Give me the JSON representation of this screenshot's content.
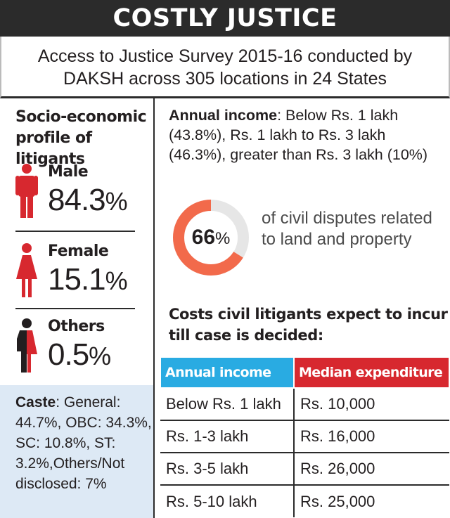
{
  "header": {
    "title": "COSTLY JUSTICE",
    "subtitle_line1": "Access to Justice Survey 2015-16 conducted by",
    "subtitle_line2": "DAKSH across 305 locations in 24 States"
  },
  "profile": {
    "heading": "Socio-economic profile of litigants",
    "genders": [
      {
        "label": "Male",
        "value": "84.3",
        "unit": "%",
        "icon": "male-figure-icon",
        "color": "#d7282f"
      },
      {
        "label": "Female",
        "value": "15.1",
        "unit": "%",
        "icon": "female-figure-icon",
        "color": "#d7282f"
      },
      {
        "label": "Others",
        "value": "0.5",
        "unit": "%",
        "icon": "others-figure-icon",
        "color": "#d7282f"
      }
    ]
  },
  "caste": {
    "label": "Caste",
    "text": ": General: 44.7%, OBC: 34.3%, SC: 10.8%, ST: 3.2%,Others/Not disclosed: 7%"
  },
  "income": {
    "label": "Annual income",
    "text": ": Below Rs. 1 lakh (43.8%), Rs. 1 lakh to Rs. 3 lakh (46.3%), greater than Rs. 3 lakh (10%)"
  },
  "disputes": {
    "value": "66",
    "unit": "%",
    "fraction": 0.66,
    "text": "of civil disputes related to land and property",
    "colors": {
      "filled": "#f26a4b",
      "remainder": "#e6e6e6"
    }
  },
  "costs": {
    "heading": "Costs civil litigants expect to incur till case is decided:",
    "col_income": "Annual income",
    "col_expenditure": "Median expenditure",
    "rows": [
      {
        "income": "Below Rs. 1 lakh",
        "expenditure": "Rs. 10,000"
      },
      {
        "income": "Rs. 1-3 lakh",
        "expenditure": "Rs. 16,000"
      },
      {
        "income": "Rs. 3-5 lakh",
        "expenditure": "Rs. 26,000"
      },
      {
        "income": "Rs. 5-10 lakh",
        "expenditure": "Rs. 25,000"
      }
    ]
  },
  "chart_data": {
    "type": "table",
    "title": "Costs civil litigants expect to incur till case is decided:",
    "columns": [
      "Annual income",
      "Median expenditure"
    ],
    "categories": [
      "Below Rs. 1 lakh",
      "Rs. 1-3 lakh",
      "Rs. 3-5 lakh",
      "Rs. 5-10 lakh"
    ],
    "values": [
      10000,
      16000,
      26000,
      25000
    ],
    "colors": {
      "income_header": "#29abe2",
      "expenditure_header": "#d7282f"
    }
  }
}
